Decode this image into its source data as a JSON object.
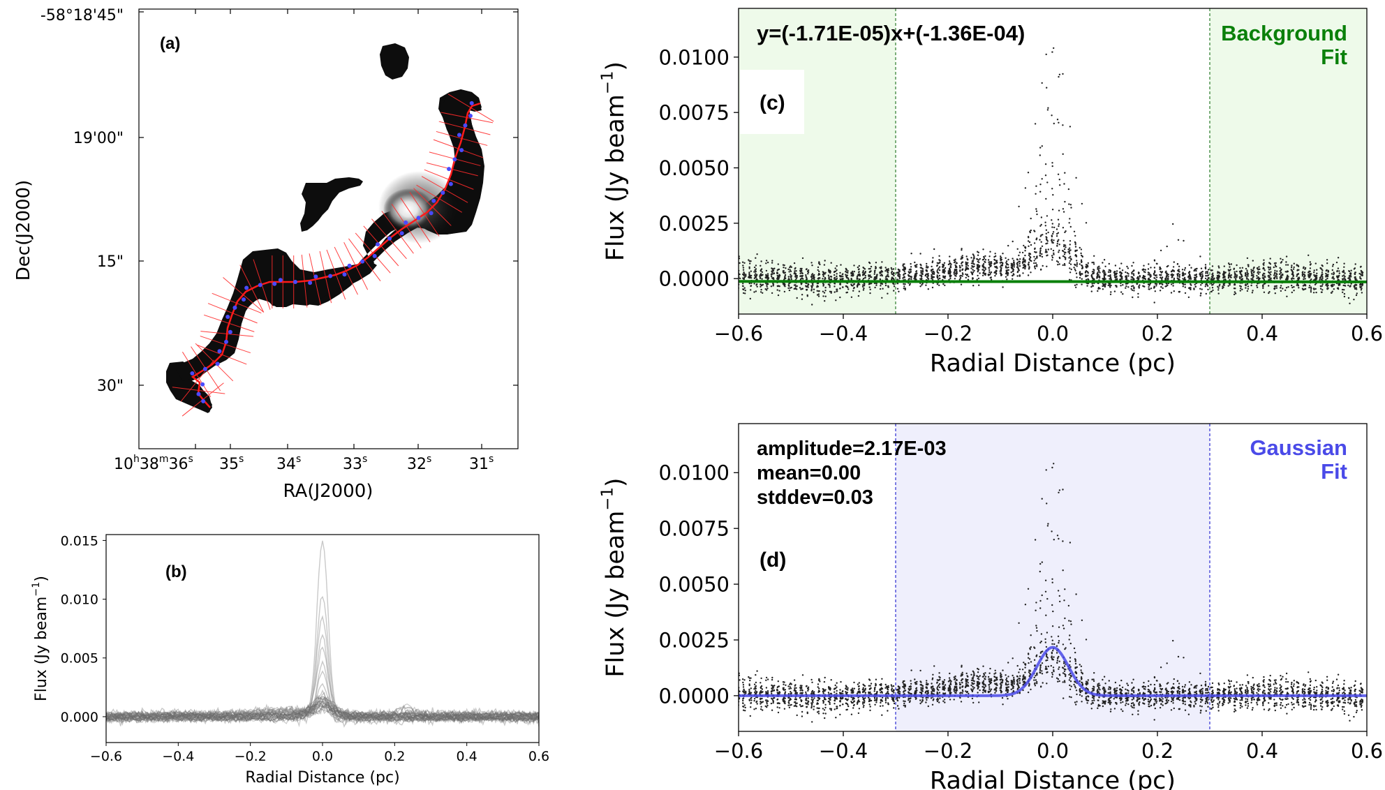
{
  "chart_data": [
    {
      "panel": "a",
      "type": "image",
      "label": "(a)",
      "xlabel": "RA(J2000)",
      "ylabel": "Dec(J2000)",
      "xticks": [
        {
          "h": "10",
          "hs": "h",
          "m": "38",
          "ms": "m",
          "s": "36",
          "ss": "s"
        },
        {
          "s": "35",
          "ss": "s"
        },
        {
          "s": "34",
          "ss": "s"
        },
        {
          "s": "33",
          "ss": "s"
        },
        {
          "s": "32",
          "ss": "s"
        },
        {
          "s": "31",
          "ss": "s"
        }
      ],
      "yticks": [
        "-58°18'45\"",
        "19'00\"",
        "15\"",
        "30\""
      ]
    },
    {
      "panel": "b",
      "type": "line",
      "label": "(b)",
      "xlabel": "Radial Distance (pc)",
      "ylabel": "Flux (Jy beam",
      "ylabel_sup": "−1",
      "ylabel_close": ")",
      "xlim": [
        -0.6,
        0.6
      ],
      "ylim": [
        -0.0022,
        0.0155
      ],
      "xticks": [
        "−0.6",
        "−0.4",
        "−0.2",
        "0.0",
        "0.2",
        "0.4",
        "0.6"
      ],
      "yticks": [
        "0.000",
        "0.005",
        "0.010",
        "0.015"
      ],
      "ytick_values": [
        0,
        0.005,
        0.01,
        0.015
      ],
      "profile_peaks": [
        0.0148,
        0.0101,
        0.0082,
        0.0067,
        0.0055,
        0.0046,
        0.0036,
        0.0028,
        0.0022,
        0.0018,
        0.0015,
        0.0012,
        0.001,
        0.0008
      ],
      "profile_width_pc": 0.015
    },
    {
      "panel": "c",
      "type": "scatter",
      "label": "(c)",
      "xlabel": "Radial Distance (pc)",
      "ylabel": "Flux (Jy beam",
      "ylabel_sup": "−1",
      "ylabel_close": ")",
      "xlim": [
        -0.6,
        0.6
      ],
      "ylim": [
        -0.0016,
        0.0122
      ],
      "xticks": [
        "−0.6",
        "−0.4",
        "−0.2",
        "0.0",
        "0.2",
        "0.4",
        "0.6"
      ],
      "yticks": [
        "0.0000",
        "0.0025",
        "0.0050",
        "0.0075",
        "0.0100"
      ],
      "ytick_values": [
        0,
        0.0025,
        0.005,
        0.0075,
        0.01
      ],
      "equation": "y=(-1.71E-05)x+(-1.36E-04)",
      "fit_title": [
        "Background",
        "Fit"
      ],
      "fit_slope": -1.71e-05,
      "fit_intercept": -0.000136,
      "shaded_regions": [
        [
          -0.6,
          -0.3
        ],
        [
          0.3,
          0.6
        ]
      ],
      "shade_color": "#eefaea",
      "fit_color": "#0a800a",
      "boundary_color": "#2a7a2a"
    },
    {
      "panel": "d",
      "type": "scatter",
      "label": "(d)",
      "xlabel": "Radial Distance (pc)",
      "ylabel": "Flux (Jy beam",
      "ylabel_sup": "−1",
      "ylabel_close": ")",
      "xlim": [
        -0.6,
        0.6
      ],
      "ylim": [
        -0.0016,
        0.0122
      ],
      "xticks": [
        "−0.6",
        "−0.4",
        "−0.2",
        "0.0",
        "0.2",
        "0.4",
        "0.6"
      ],
      "yticks": [
        "0.0000",
        "0.0025",
        "0.0050",
        "0.0075",
        "0.0100"
      ],
      "ytick_values": [
        0,
        0.0025,
        0.005,
        0.0075,
        0.01
      ],
      "params": [
        "amplitude=2.17E-03",
        "mean=0.00",
        "stddev=0.03"
      ],
      "fit_title": [
        "Gaussian",
        "Fit"
      ],
      "amplitude": 0.00217,
      "mean": 0.0,
      "stddev": 0.03,
      "shaded_regions": [
        [
          -0.3,
          0.3
        ]
      ],
      "shade_color": "#efeffc",
      "fit_color": "#4a4ae8",
      "boundary_color": "#2a2ad0"
    }
  ]
}
